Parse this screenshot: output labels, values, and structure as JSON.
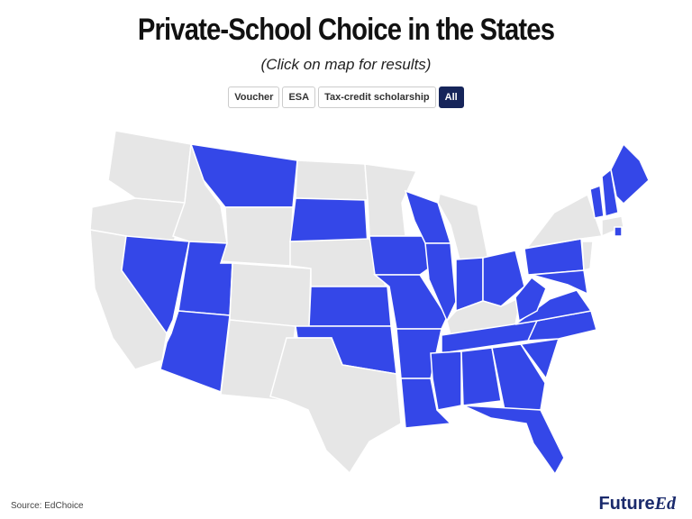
{
  "header": {
    "title": "Private-School Choice in the States",
    "subtitle": "(Click on map for results)"
  },
  "buttons": [
    "Voucher",
    "ESA",
    "Tax-credit scholarship",
    "All"
  ],
  "footer": {
    "source": "Source: EdChoice",
    "logo": [
      "Future",
      "Ed"
    ]
  }
}
